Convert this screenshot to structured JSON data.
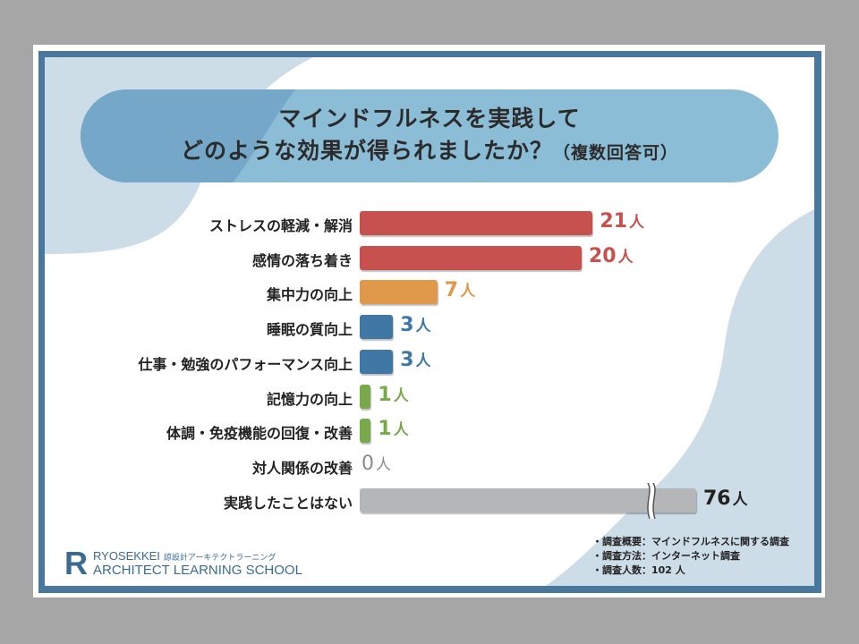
{
  "title": {
    "line1": "マインドフルネスを実践して",
    "line2": "どのような効果が得られましたか？",
    "note": "（複数回答可）"
  },
  "colors": {
    "red": "#c6514f",
    "orange": "#e0984a",
    "blue": "#3f77a5",
    "green": "#7aa84c",
    "gray": "#b4b6b8",
    "zero": "#8c8c8c",
    "dark": "#222222"
  },
  "chart_data": {
    "type": "bar",
    "orientation": "horizontal",
    "title": "マインドフルネスを実践して どのような効果が得られましたか？（複数回答可）",
    "unit": "人",
    "categories": [
      "ストレスの軽減・解消",
      "感情の落ち着き",
      "集中力の向上",
      "睡眠の質向上",
      "仕事・勉強のパフォーマンス向上",
      "記憶力の向上",
      "体調・免疫機能の回復・改善",
      "対人関係の改善",
      "実践したことはない"
    ],
    "values": [
      21,
      20,
      7,
      3,
      3,
      1,
      1,
      0,
      76
    ],
    "value_labels": [
      "21",
      "20",
      "7",
      "3",
      "3",
      "1",
      "1",
      "0",
      "76"
    ],
    "bar_colors": [
      "red",
      "red",
      "orange",
      "blue",
      "blue",
      "green",
      "green",
      "zero",
      "gray"
    ],
    "broken_axis_category": "実践したことはない",
    "xlabel": "",
    "ylabel": "",
    "grid": false
  },
  "survey": {
    "items": [
      "・調査概要：マインドフルネスに関する調査",
      "・調査方法：インターネット調査",
      "・調査人数：102 人"
    ]
  },
  "logo": {
    "mark": "R",
    "line1": "RYOSEKKEI",
    "line1_jp": "諒設計アーキテクトラーニング",
    "line2": "ARCHITECT LEARNING SCHOOL"
  }
}
